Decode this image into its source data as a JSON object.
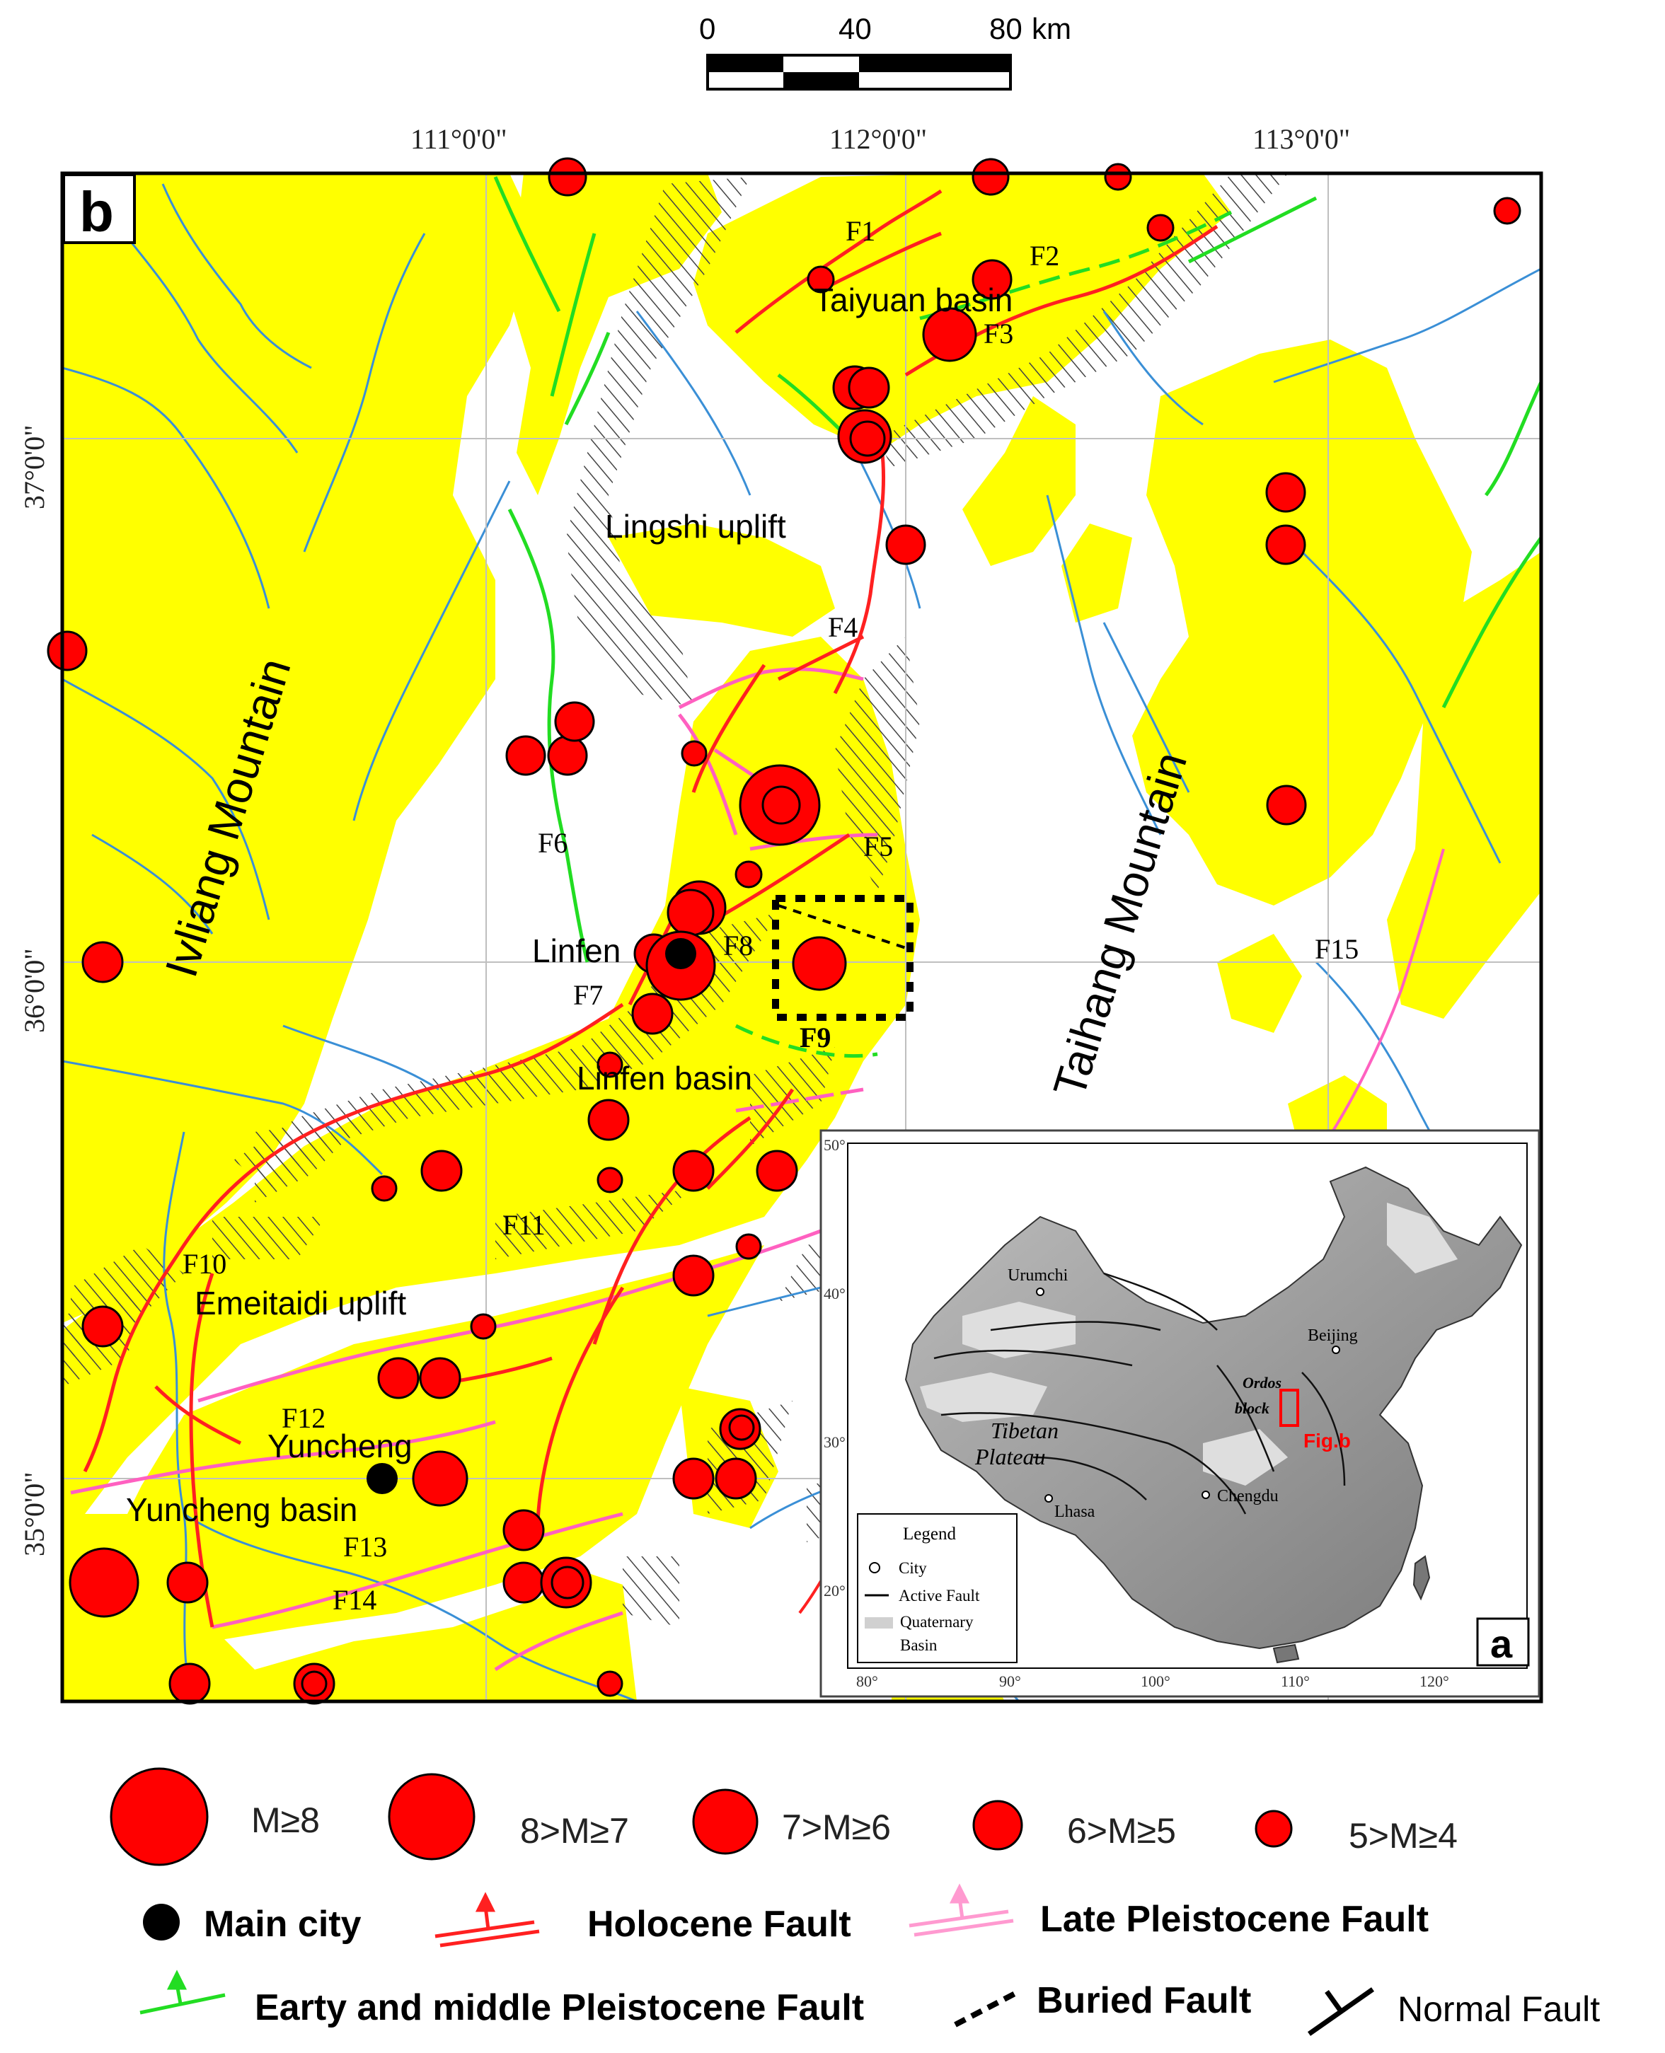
{
  "panel_label": "b",
  "inset_label": "a",
  "scale_bar": {
    "ticks": [
      "0",
      "40",
      "80"
    ],
    "unit": "km"
  },
  "lon_ticks": [
    "111°0'0\"",
    "112°0'0\"",
    "113°0'0\""
  ],
  "lat_ticks": [
    "37°0'0\"",
    "36°0'0\"",
    "35°0'0\""
  ],
  "regions": {
    "taiyuan_basin": "Taiyuan basin",
    "lingshi_uplift": "Lingshi uplift",
    "lvliang_mountain": "Ivliang Mountain",
    "taihang_mountain": "Taihang Mountain",
    "linfen_basin": "Linfen basin",
    "emeitaidi_uplift": "Emeitaidi uplift",
    "yuncheng_basin": "Yuncheng basin"
  },
  "cities": {
    "linfen": "Linfen",
    "yuncheng": "Yuncheng"
  },
  "faults": [
    "F1",
    "F2",
    "F3",
    "F4",
    "F5",
    "F6",
    "F7",
    "F8",
    "F9",
    "F10",
    "F11",
    "F12",
    "F13",
    "F14",
    "F15"
  ],
  "inset": {
    "lat_ticks": [
      "50°",
      "40°",
      "30°",
      "20°"
    ],
    "lon_ticks": [
      "80°",
      "90°",
      "100°",
      "110°",
      "120°"
    ],
    "places": {
      "urumchi": "Urumchi",
      "beijing": "Beijing",
      "lhasa": "Lhasa",
      "chengdu": "Chengdu"
    },
    "tibetan": "Tibetan",
    "plateau": "Plateau",
    "ordos": "Ordos",
    "block": "block",
    "fig_b": "Fig.b",
    "legend_title": "Legend",
    "legend_items": [
      "City",
      "Active Fault",
      "Quaternary",
      "Basin"
    ]
  },
  "legend": {
    "magnitudes": [
      "M≥8",
      "8>M≥7",
      "7>M≥6",
      "6>M≥5",
      "5>M≥4"
    ],
    "main_city": "Main city",
    "holocene": "Holocene Fault",
    "late_pleistocene": "Late Pleistocene Fault",
    "early_middle": "Earty and middle Pleistocene Fault",
    "buried": "Buried Fault",
    "normal": "Normal Fault"
  },
  "colors": {
    "quaternary_fill": "#ffff00",
    "earthquake_fill": "#ff0000",
    "holocene_fault": "#ff2020",
    "late_pleistocene_fault": "#ff60c0",
    "early_middle_fault": "#22dd22",
    "river": "#3a8fd6"
  }
}
